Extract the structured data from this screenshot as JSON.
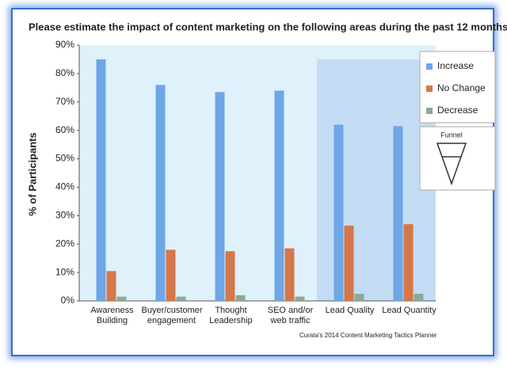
{
  "chart_data": {
    "type": "bar",
    "title": "Please estimate the impact of content marketing on the following areas during the past 12 months.",
    "y_label": "% of Participants",
    "categories": [
      "Awareness Building",
      "Buyer/customer engagement",
      "Thought Leadership",
      "SEO and/or web traffic",
      "Lead Quality",
      "Lead Quantity"
    ],
    "series": [
      {
        "name": "Increase",
        "color": "#6ea6e6",
        "values": [
          85,
          76,
          73.5,
          74,
          62,
          61.5
        ]
      },
      {
        "name": "No Change",
        "color": "#d5774a",
        "values": [
          10.5,
          18,
          17.5,
          18.5,
          26.5,
          27
        ]
      },
      {
        "name": "Decrease",
        "color": "#8ea897",
        "values": [
          1.5,
          1.5,
          2,
          1.5,
          2.5,
          2.5
        ]
      }
    ],
    "ylim": [
      0,
      90
    ],
    "yticks": [
      {
        "value": 0,
        "label": "0%"
      },
      {
        "value": 10,
        "label": "10%"
      },
      {
        "value": 20,
        "label": "20%"
      },
      {
        "value": 30,
        "label": "30%"
      },
      {
        "value": 40,
        "label": "40%"
      },
      {
        "value": 50,
        "label": "50%"
      },
      {
        "value": 60,
        "label": "60%"
      },
      {
        "value": 70,
        "label": "70%"
      },
      {
        "value": 80,
        "label": "80%"
      },
      {
        "value": 90,
        "label": "90%"
      }
    ],
    "funnel_label": "Funnel",
    "source": "Curata's 2014 Content Marketing Tactics Planner"
  }
}
